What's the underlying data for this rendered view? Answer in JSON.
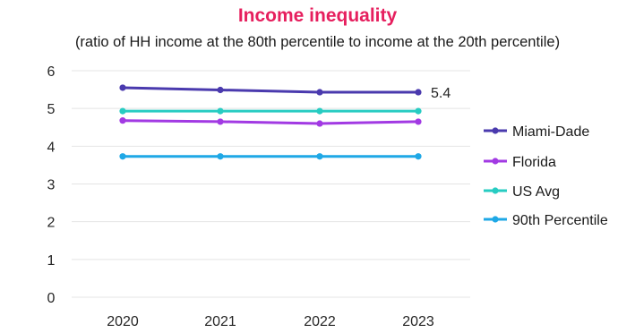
{
  "chart_data": {
    "type": "line",
    "title": "Income inequality",
    "subtitle": "(ratio of HH income at the 80th percentile to income at the 20th percentile)",
    "categories": [
      "2020",
      "2021",
      "2022",
      "2023"
    ],
    "ylim": [
      0,
      6
    ],
    "yticks": [
      0,
      1,
      2,
      3,
      4,
      5,
      6
    ],
    "grid": true,
    "legend_position": "right",
    "series": [
      {
        "name": "Miami-Dade",
        "values": [
          5.55,
          5.49,
          5.43,
          5.43
        ],
        "color": "#4a3aae"
      },
      {
        "name": "Florida",
        "values": [
          4.68,
          4.65,
          4.6,
          4.65
        ],
        "color": "#a23ae3"
      },
      {
        "name": "US Avg",
        "values": [
          4.93,
          4.93,
          4.93,
          4.93
        ],
        "color": "#27ccc2"
      },
      {
        "name": "90th Percentile",
        "values": [
          3.73,
          3.73,
          3.73,
          3.73
        ],
        "color": "#1fa8e6"
      }
    ],
    "annotations": [
      {
        "series": "Miami-Dade",
        "category": "2023",
        "text": "5.4"
      }
    ],
    "title_color": "#e61f5e"
  }
}
